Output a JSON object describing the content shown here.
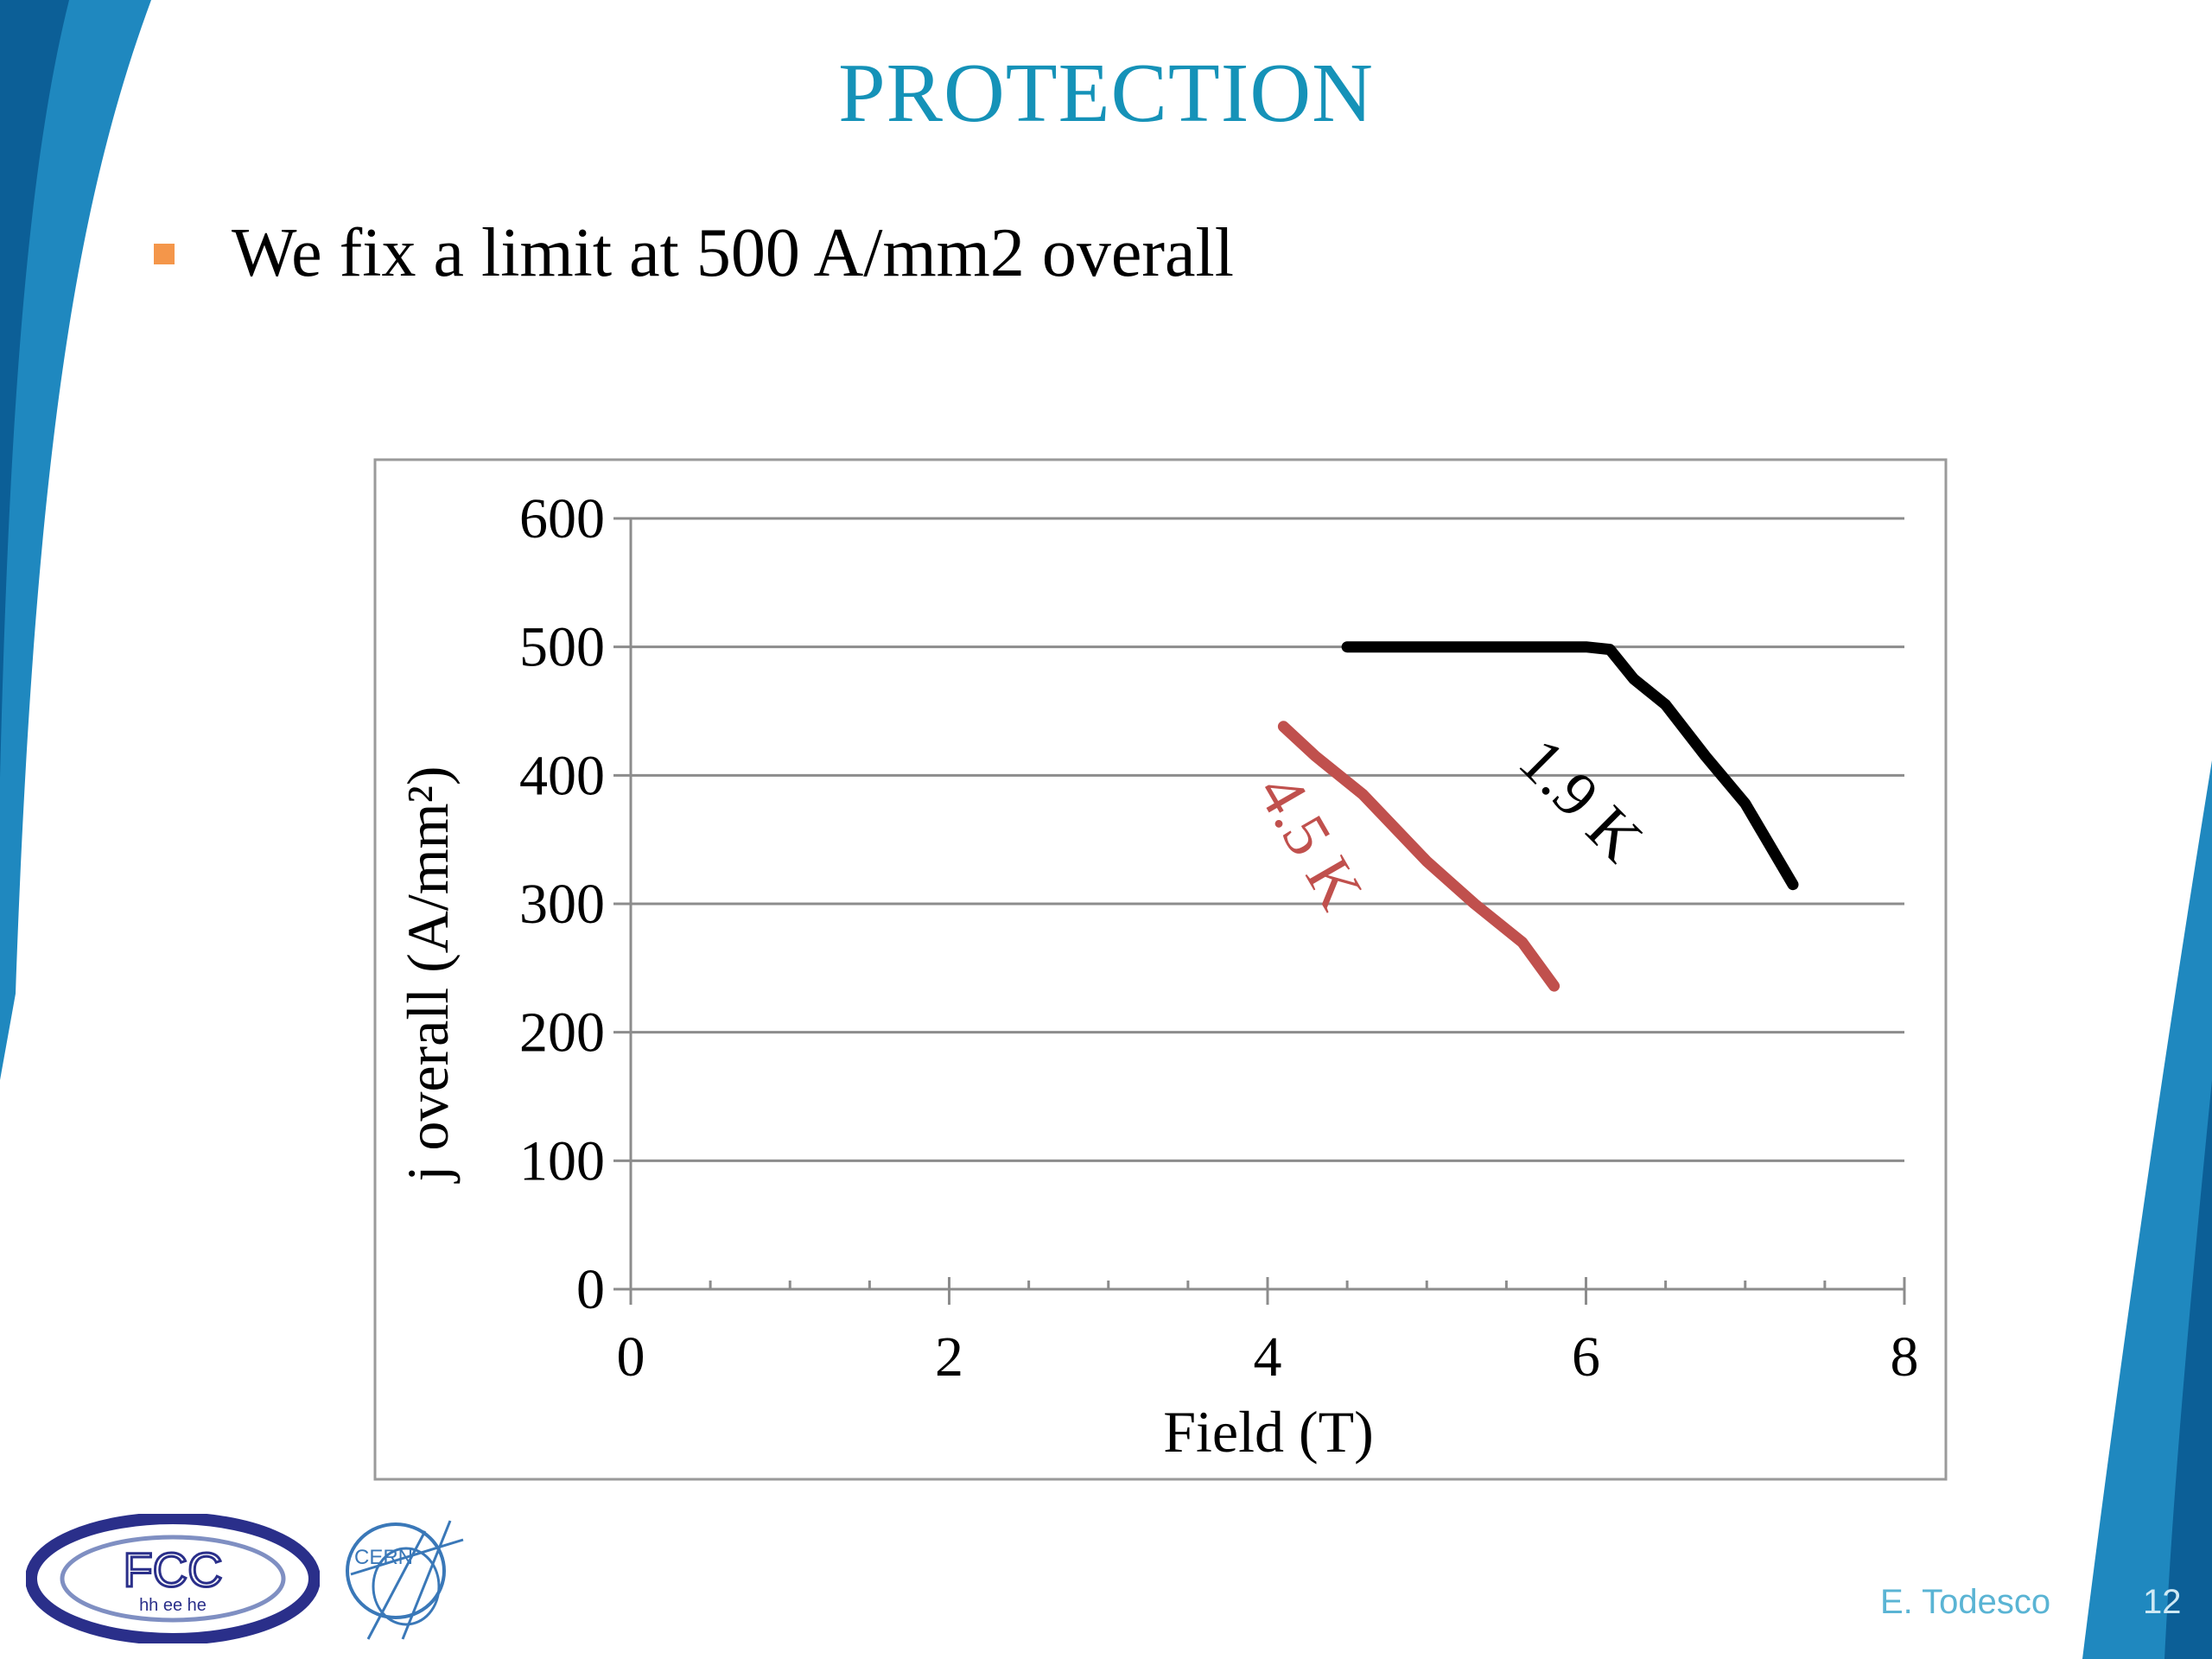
{
  "slide": {
    "title": "PROTECTION",
    "bullet": "We fix a limit at 500 A/mm2 overall",
    "author": "E. Todesco",
    "page_number": "12"
  },
  "logos": {
    "fcc": {
      "main": "FCC",
      "sub": "hh ee he"
    },
    "cern": "CERN"
  },
  "colors": {
    "title": "#1592b8",
    "bullet": "#f4964a",
    "series_1_9K": "#000000",
    "series_4_5K": "#c0504d"
  },
  "chart_data": {
    "type": "line",
    "xlabel": "Field (T)",
    "ylabel": "j overall (A/mm²)",
    "xlim": [
      0,
      8
    ],
    "ylim": [
      0,
      600
    ],
    "x_ticks": [
      "0",
      "2",
      "4",
      "6",
      "8"
    ],
    "y_ticks": [
      "0",
      "100",
      "200",
      "300",
      "400",
      "500",
      "600"
    ],
    "grid": "horizontal",
    "series": [
      {
        "name": "1.9 K",
        "color": "#000000",
        "points": [
          [
            4.5,
            500
          ],
          [
            5.0,
            500
          ],
          [
            5.5,
            500
          ],
          [
            6.0,
            500
          ],
          [
            6.15,
            498
          ],
          [
            6.3,
            475
          ],
          [
            6.5,
            455
          ],
          [
            6.75,
            415
          ],
          [
            7.0,
            378
          ],
          [
            7.3,
            315
          ]
        ]
      },
      {
        "name": "4.5 K",
        "color": "#c0504d",
        "points": [
          [
            4.1,
            438
          ],
          [
            4.3,
            415
          ],
          [
            4.6,
            385
          ],
          [
            5.0,
            333
          ],
          [
            5.3,
            300
          ],
          [
            5.6,
            270
          ],
          [
            5.8,
            236
          ]
        ]
      }
    ]
  }
}
